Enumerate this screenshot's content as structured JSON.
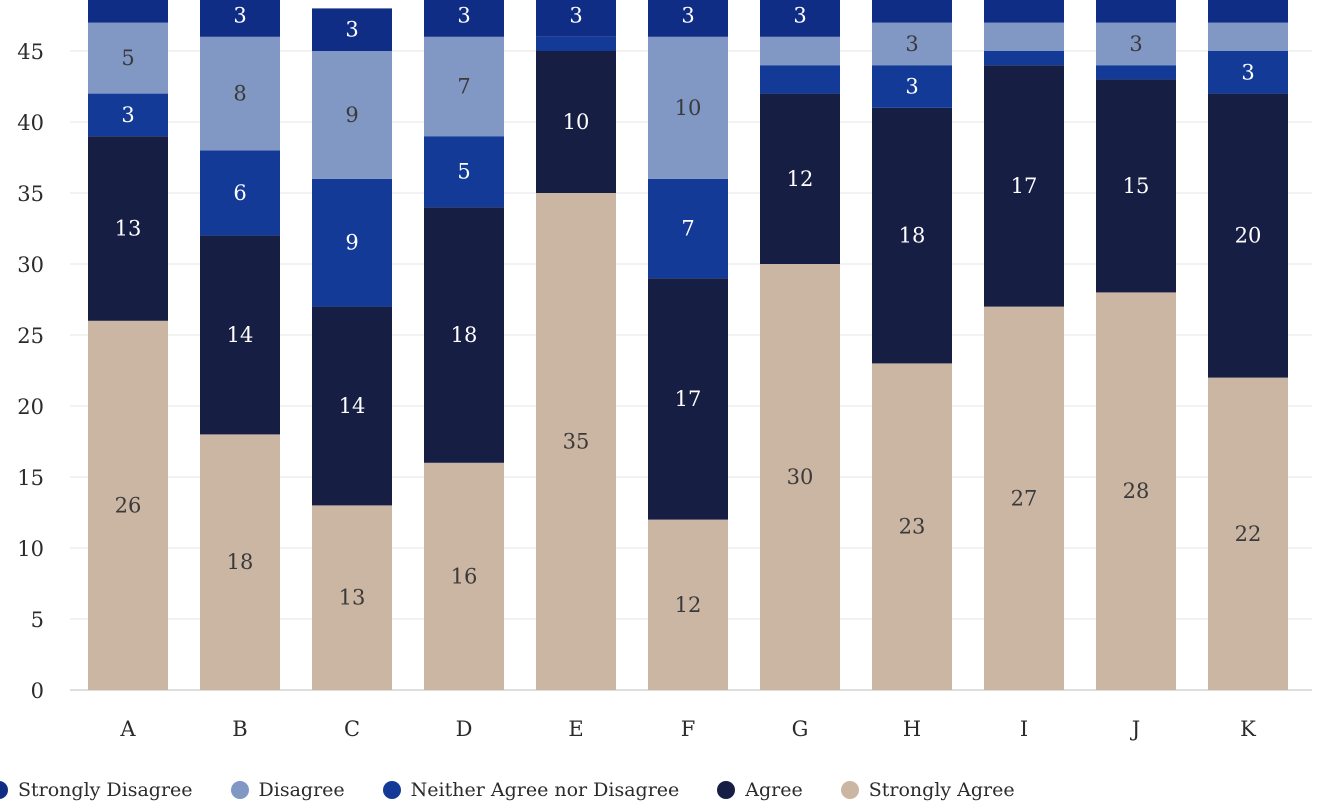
{
  "chart_data": {
    "type": "bar",
    "stacked": true,
    "title": "",
    "xlabel": "",
    "ylabel": "",
    "ylim": [
      0,
      48
    ],
    "yticks": [
      0,
      5,
      10,
      15,
      20,
      25,
      30,
      35,
      40,
      45
    ],
    "grid": "horizontal",
    "legend_position": "bottom",
    "categories": [
      "A",
      "B",
      "C",
      "D",
      "E",
      "F",
      "G",
      "H",
      "I",
      "J",
      "K"
    ],
    "series": [
      {
        "name": "Strongly Agree",
        "color": "#cbb6a4",
        "label_color": "#3a3a3a",
        "values": [
          26,
          18,
          13,
          16,
          35,
          12,
          30,
          23,
          27,
          28,
          22
        ]
      },
      {
        "name": "Agree",
        "color": "#171e44",
        "label_color": "#ffffff",
        "values": [
          13,
          14,
          14,
          18,
          10,
          17,
          12,
          18,
          17,
          15,
          20
        ]
      },
      {
        "name": "Neither Agree nor Disagree",
        "color": "#123a96",
        "label_color": "#ffffff",
        "values": [
          3,
          6,
          9,
          5,
          1,
          7,
          2,
          3,
          1,
          1,
          3
        ]
      },
      {
        "name": "Disagree",
        "color": "#8197c4",
        "label_color": "#3a3a3a",
        "values": [
          5,
          8,
          9,
          7,
          0,
          10,
          2,
          3,
          2,
          3,
          2
        ]
      },
      {
        "name": "Strongly Disagree",
        "color": "#102d86",
        "label_color": "#ffffff",
        "values": [
          2,
          3,
          3,
          3,
          3,
          3,
          3,
          2,
          2,
          2,
          2
        ]
      }
    ],
    "label_min": 3,
    "legend_order": [
      "Strongly Disagree",
      "Disagree",
      "Neither Agree nor Disagree",
      "Agree",
      "Strongly Agree"
    ]
  }
}
